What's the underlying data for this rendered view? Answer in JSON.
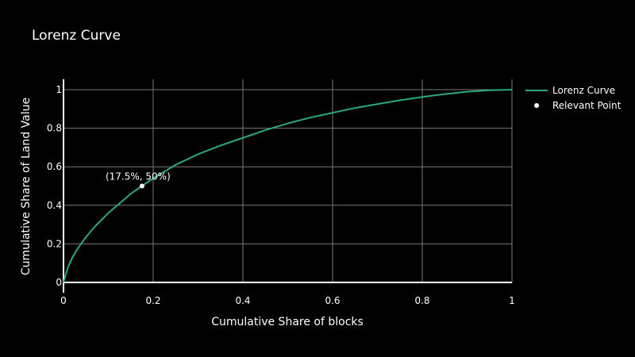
{
  "chart_data": {
    "type": "line",
    "title": "Lorenz Curve",
    "xlabel": "Cumulative Share of blocks",
    "ylabel": "Cumulative Share of Land Value",
    "xlim": [
      0,
      1
    ],
    "ylim": [
      0,
      1
    ],
    "x_ticks": [
      0,
      0.2,
      0.4,
      0.6,
      0.8,
      1
    ],
    "y_ticks": [
      0,
      0.2,
      0.4,
      0.6,
      0.8,
      1
    ],
    "x_tick_labels": [
      "0",
      "0.2",
      "0.4",
      "0.6",
      "0.8",
      "1"
    ],
    "y_tick_labels": [
      "0",
      "0.2",
      "0.4",
      "0.6",
      "0.8",
      "1"
    ],
    "grid": true,
    "legend_position": "top-right",
    "series": [
      {
        "name": "Lorenz Curve",
        "color": "#2ca87a",
        "x": [
          0,
          0.01,
          0.02,
          0.03,
          0.05,
          0.07,
          0.1,
          0.125,
          0.15,
          0.175,
          0.2,
          0.25,
          0.3,
          0.35,
          0.4,
          0.45,
          0.5,
          0.55,
          0.6,
          0.65,
          0.7,
          0.75,
          0.8,
          0.85,
          0.9,
          0.95,
          1
        ],
        "y": [
          0,
          0.08,
          0.13,
          0.17,
          0.235,
          0.29,
          0.36,
          0.41,
          0.46,
          0.5,
          0.54,
          0.61,
          0.665,
          0.71,
          0.75,
          0.79,
          0.825,
          0.855,
          0.88,
          0.905,
          0.925,
          0.945,
          0.962,
          0.977,
          0.989,
          0.997,
          1
        ]
      }
    ],
    "points": [
      {
        "name": "Relevant Point",
        "color": "#ffffff",
        "x": 0.175,
        "y": 0.5,
        "label": "(17.5%, 50%)"
      }
    ]
  }
}
